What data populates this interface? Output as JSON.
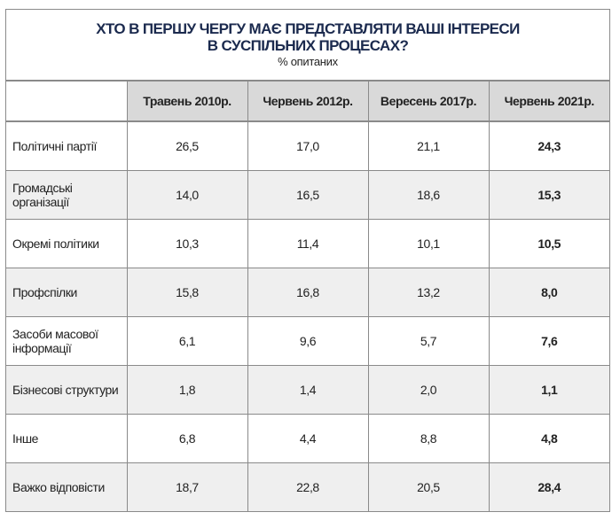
{
  "title_line1": "ХТО В ПЕРШУ ЧЕРГУ МАЄ ПРЕДСТАВЛЯТИ ВАШІ ІНТЕРЕСИ",
  "title_line2": "В СУСПІЛЬНИХ ПРОЦЕСАХ?",
  "subtitle": "% опитаних",
  "columns": [
    "Травень 2010р.",
    "Червень 2012р.",
    "Вересень 2017р.",
    "Червень 2021р."
  ],
  "rows": [
    {
      "label": "Політичні партії",
      "values": [
        "26,5",
        "17,0",
        "21,1",
        "24,3"
      ]
    },
    {
      "label": "Громадські організації",
      "values": [
        "14,0",
        "16,5",
        "18,6",
        "15,3"
      ]
    },
    {
      "label": "Окремі політики",
      "values": [
        "10,3",
        "11,4",
        "10,1",
        "10,5"
      ]
    },
    {
      "label": "Профспілки",
      "values": [
        "15,8",
        "16,8",
        "13,2",
        "8,0"
      ]
    },
    {
      "label": "Засоби масової інформації",
      "values": [
        "6,1",
        "9,6",
        "5,7",
        "7,6"
      ]
    },
    {
      "label": "Бізнесові структури",
      "values": [
        "1,8",
        "1,4",
        "2,0",
        "1,1"
      ]
    },
    {
      "label": "Інше",
      "values": [
        "6,8",
        "4,4",
        "8,8",
        "4,8"
      ]
    },
    {
      "label": "Важко відповісти",
      "values": [
        "18,7",
        "22,8",
        "20,5",
        "28,4"
      ]
    }
  ],
  "colors": {
    "title": "#1b2a4e",
    "header_bg": "#d9d9d9",
    "alt_row_bg": "#efefef",
    "border": "#8a8a8a"
  }
}
